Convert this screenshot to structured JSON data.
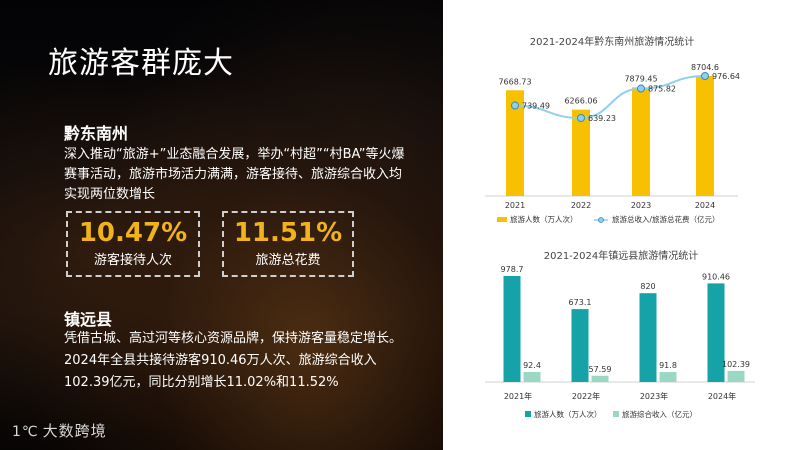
{
  "page": {
    "title": "旅游客群庞大",
    "section1": {
      "heading": "黔东南州",
      "text": "深入推动“旅游+”业态融合发展，举办“村超”“村BA”等火爆赛事活动，旅游市场活力满满，游客接待、旅游综合收入均实现两位数增长",
      "stat1_value": "10.47%",
      "stat1_label": "游客接待人次",
      "stat2_value": "11.51%",
      "stat2_label": "旅游总花费"
    },
    "section2": {
      "heading": "镇远县",
      "text": "凭借古城、高过河等核心资源品牌，保持游客量稳定增长。2024年全县共接待游客910.46万人次、旅游综合收入102.39亿元，同比分别增长11.02%和11.52%"
    },
    "logo_text": "大数跨境",
    "logo_mark": "1℃"
  },
  "chart_data": [
    {
      "type": "bar",
      "title": "2021-2024年黔东南州旅游情况统计",
      "categories": [
        "2021",
        "2022",
        "2023",
        "2024"
      ],
      "series": [
        {
          "name": "旅游人数（万人次）",
          "type": "bar",
          "values": [
            7668.73,
            6266.06,
            7879.45,
            8704.6
          ],
          "labels": [
            "7668.73",
            "6266.06",
            "7879.45",
            "8704.6"
          ],
          "color": "#f7c101"
        },
        {
          "name": "旅游总收入/旅游总花费（亿元）",
          "type": "line",
          "values": [
            739.49,
            639.23,
            875.82,
            976.64
          ],
          "labels": [
            "739.49",
            "639.23",
            "875.82",
            "976.64"
          ],
          "color": "#8fd0ee"
        }
      ]
    },
    {
      "type": "bar",
      "title": "2021-2024年镇远县旅游情况统计",
      "categories": [
        "2021年",
        "2022年",
        "2023年",
        "2024年"
      ],
      "series": [
        {
          "name": "旅游人数（万人次）",
          "values": [
            978.7,
            673.1,
            820,
            910.46
          ],
          "labels": [
            "978.7",
            "673.1",
            "820",
            "910.46"
          ],
          "color": "#16a3a8"
        },
        {
          "name": "旅游综合收入（亿元）",
          "values": [
            92.4,
            57.59,
            91.8,
            102.39
          ],
          "labels": [
            "92.4",
            "57.59",
            "91.8",
            "102.39"
          ],
          "color": "#9ad8c4"
        }
      ]
    }
  ]
}
